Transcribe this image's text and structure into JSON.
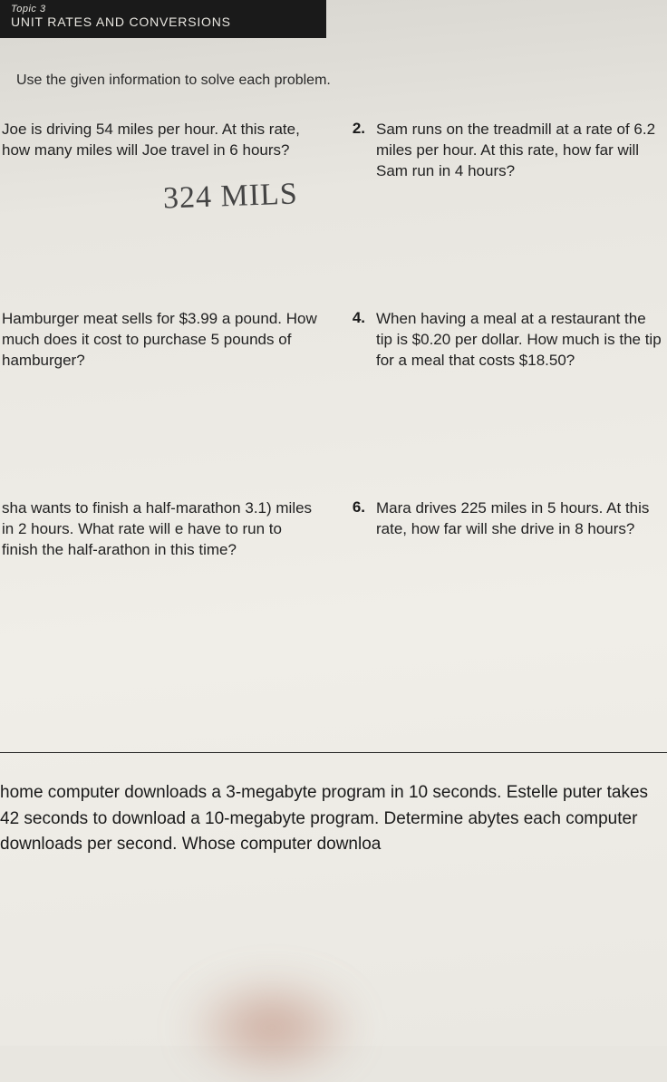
{
  "header": {
    "topic": "Topic 3",
    "title": "UNIT RATES AND CONVERSIONS"
  },
  "instruction": "Use the given information to solve each problem.",
  "problems": {
    "q1": {
      "text": "Joe is driving 54 miles per hour. At this rate, how many miles will Joe travel in 6 hours?"
    },
    "q2": {
      "num": "2.",
      "text": "Sam runs on the treadmill at a rate of 6.2 miles per hour. At this rate, how far will Sam run in 4 hours?"
    },
    "q3": {
      "text": "Hamburger meat sells for $3.99 a pound. How much does it cost to purchase 5 pounds of hamburger?"
    },
    "q4": {
      "num": "4.",
      "text": "When having a meal at a restaurant the tip is $0.20 per dollar. How much is the tip for a meal that costs $18.50?"
    },
    "q5": {
      "text": "sha wants to finish a half-marathon 3.1) miles in 2 hours. What rate will e have to run to finish the half-arathon in this time?"
    },
    "q6": {
      "num": "6.",
      "text": "Mara drives 225 miles in 5 hours. At this rate, how far will she drive in 8 hours?"
    },
    "q7": {
      "text": "home computer downloads a 3-megabyte program in 10 seconds. Estelle puter takes 42 seconds to download a 10-megabyte program. Determine abytes each computer downloads per second. Whose computer downloa"
    }
  },
  "handwritten": "324 MILS"
}
